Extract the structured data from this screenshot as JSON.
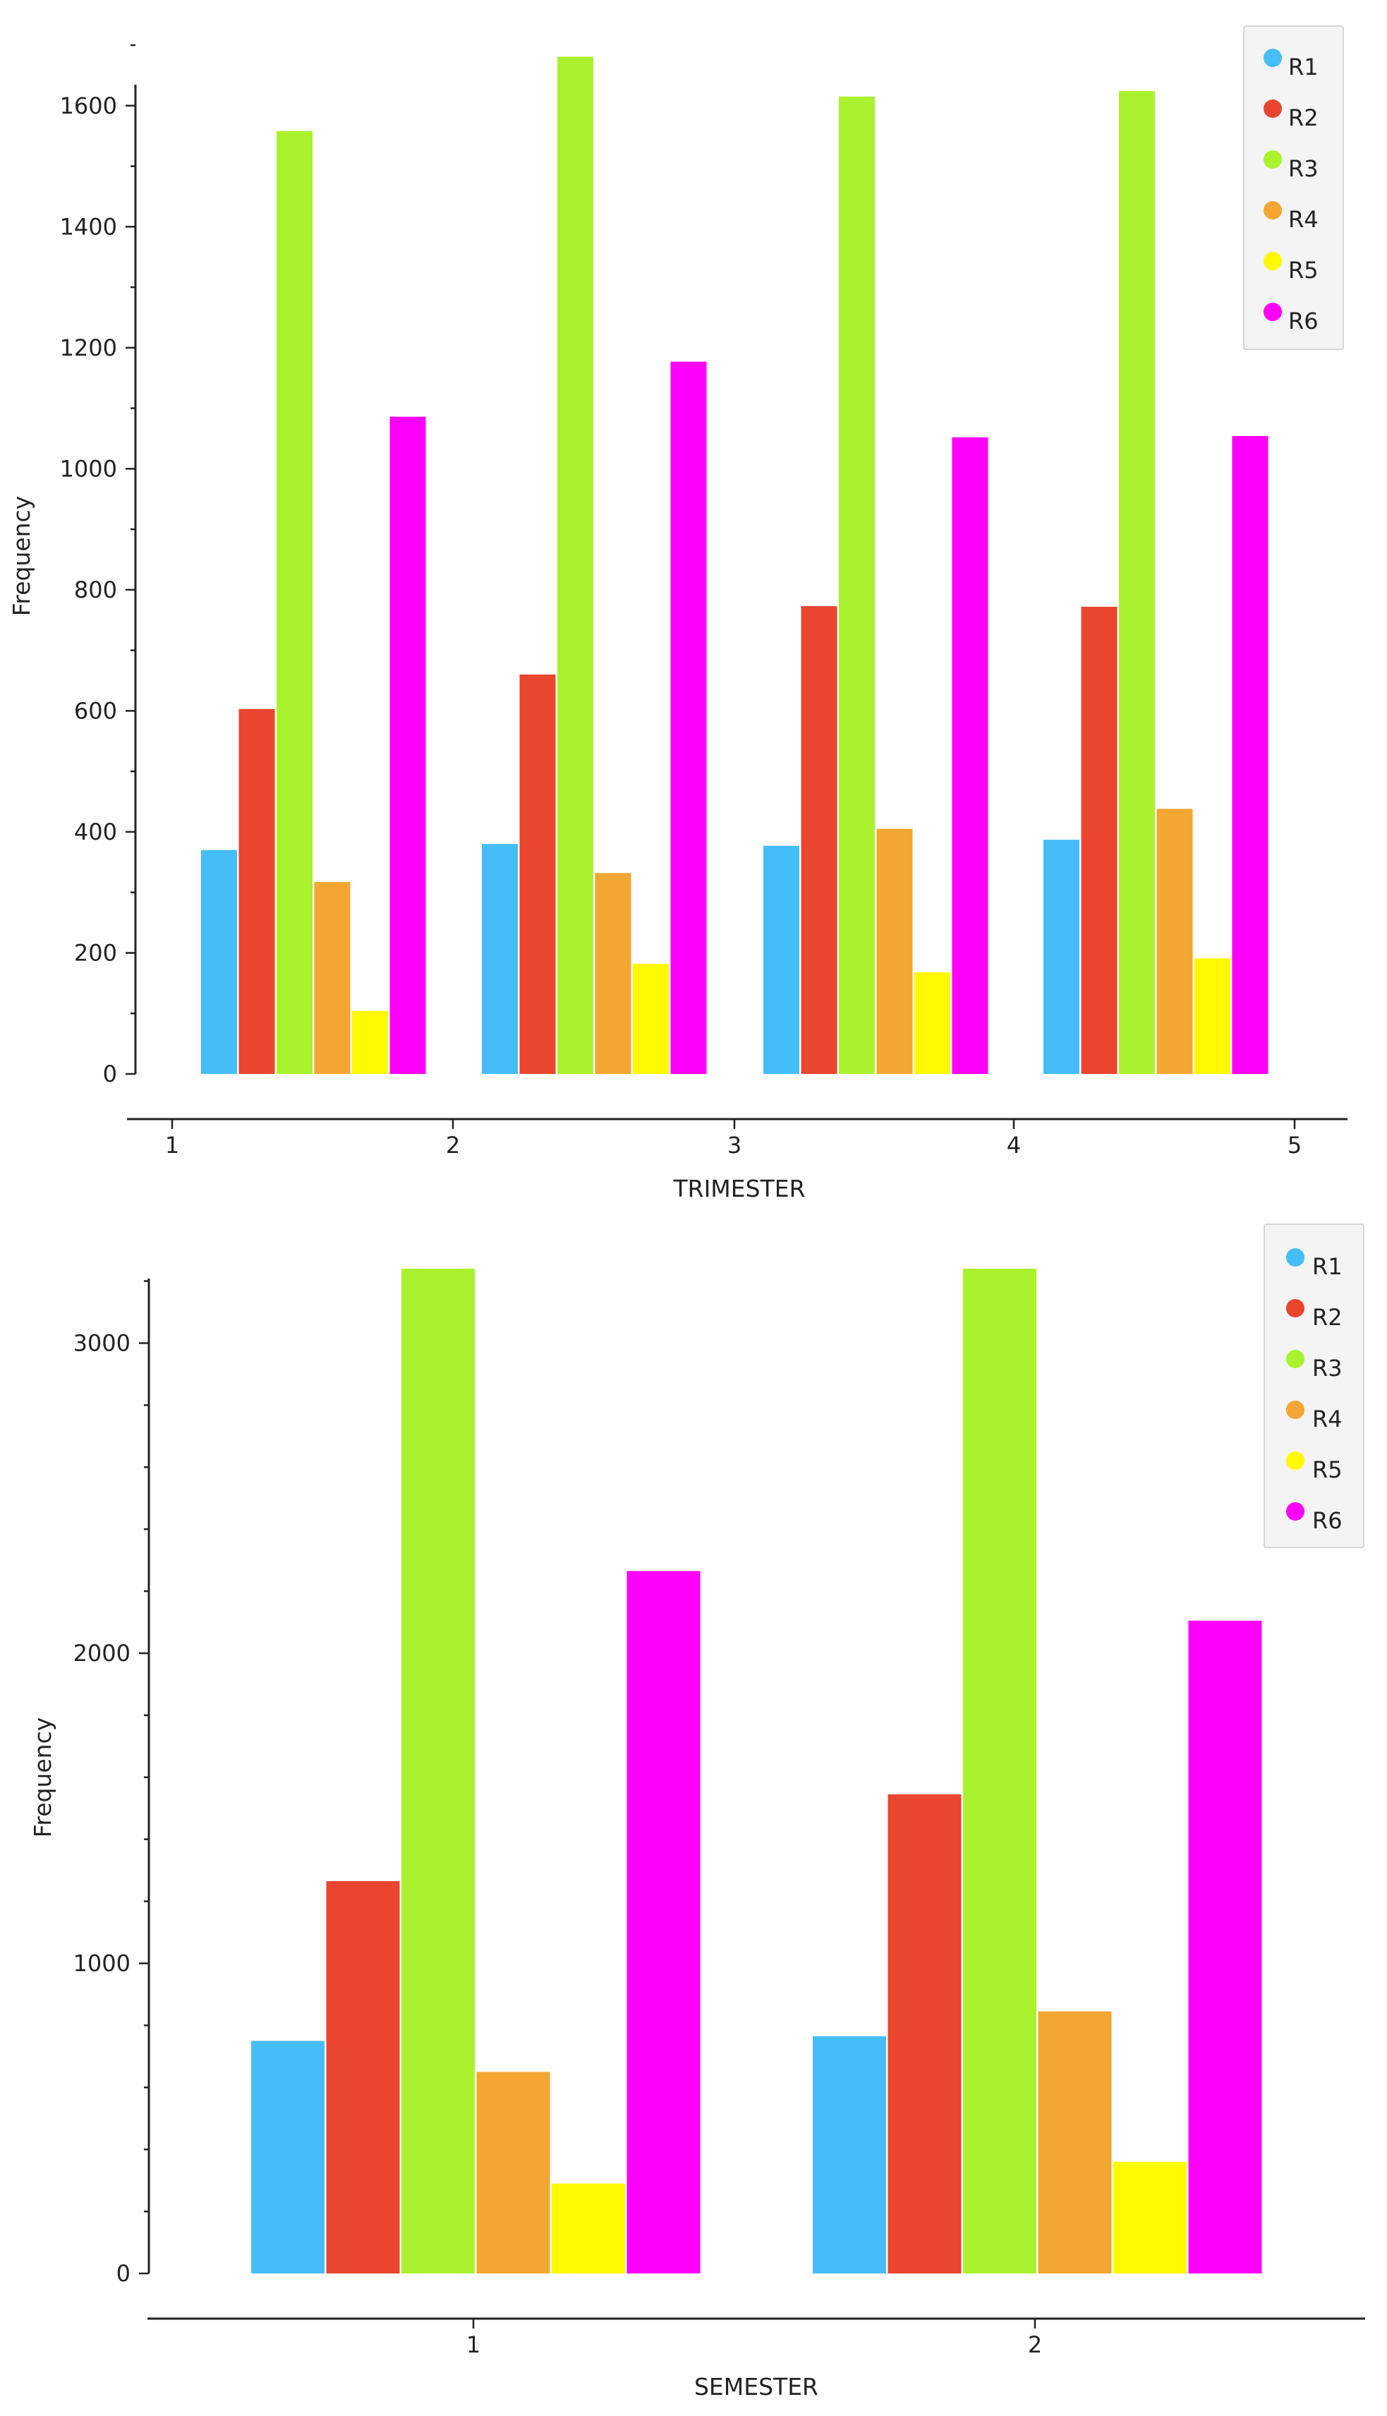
{
  "colors": {
    "R1": "#45bdf8",
    "R2": "#e9452f",
    "R3": "#abf22e",
    "R4": "#f3a632",
    "R5": "#fffa00",
    "R6": "#ff00fa"
  },
  "chart_data": [
    {
      "type": "bar",
      "title": "",
      "xlabel": "TRIMESTER",
      "ylabel": "Frequency",
      "ylim": [
        0,
        1700
      ],
      "yticks": [
        0,
        200,
        400,
        600,
        800,
        1000,
        1200,
        1400,
        1600
      ],
      "xticks": [
        1,
        2,
        3,
        4,
        5
      ],
      "legend_position": "top-right",
      "grid": false,
      "categories": [
        1,
        2,
        3,
        4
      ],
      "series": [
        {
          "name": "R1",
          "values": [
            370,
            380,
            377,
            387
          ]
        },
        {
          "name": "R2",
          "values": [
            603,
            660,
            773,
            772
          ]
        },
        {
          "name": "R3",
          "values": [
            1558,
            1681,
            1615,
            1624
          ]
        },
        {
          "name": "R4",
          "values": [
            317,
            332,
            405,
            438
          ]
        },
        {
          "name": "R5",
          "values": [
            104,
            182,
            168,
            191
          ]
        },
        {
          "name": "R6",
          "values": [
            1086,
            1177,
            1052,
            1054
          ]
        }
      ]
    },
    {
      "type": "bar",
      "title": "",
      "xlabel": "SEMESTER",
      "ylabel": "Frequency",
      "ylim": [
        0,
        3240
      ],
      "yticks": [
        0,
        1000,
        2000,
        3000
      ],
      "xticks": [
        1,
        2
      ],
      "legend_position": "top-right",
      "grid": false,
      "categories": [
        1,
        2
      ],
      "series": [
        {
          "name": "R1",
          "values": [
            750,
            765
          ]
        },
        {
          "name": "R2",
          "values": [
            1265,
            1545
          ]
        },
        {
          "name": "R3",
          "values": [
            3240,
            3240
          ]
        },
        {
          "name": "R4",
          "values": [
            650,
            845
          ]
        },
        {
          "name": "R5",
          "values": [
            290,
            360
          ]
        },
        {
          "name": "R6",
          "values": [
            2265,
            2105
          ]
        }
      ]
    }
  ]
}
